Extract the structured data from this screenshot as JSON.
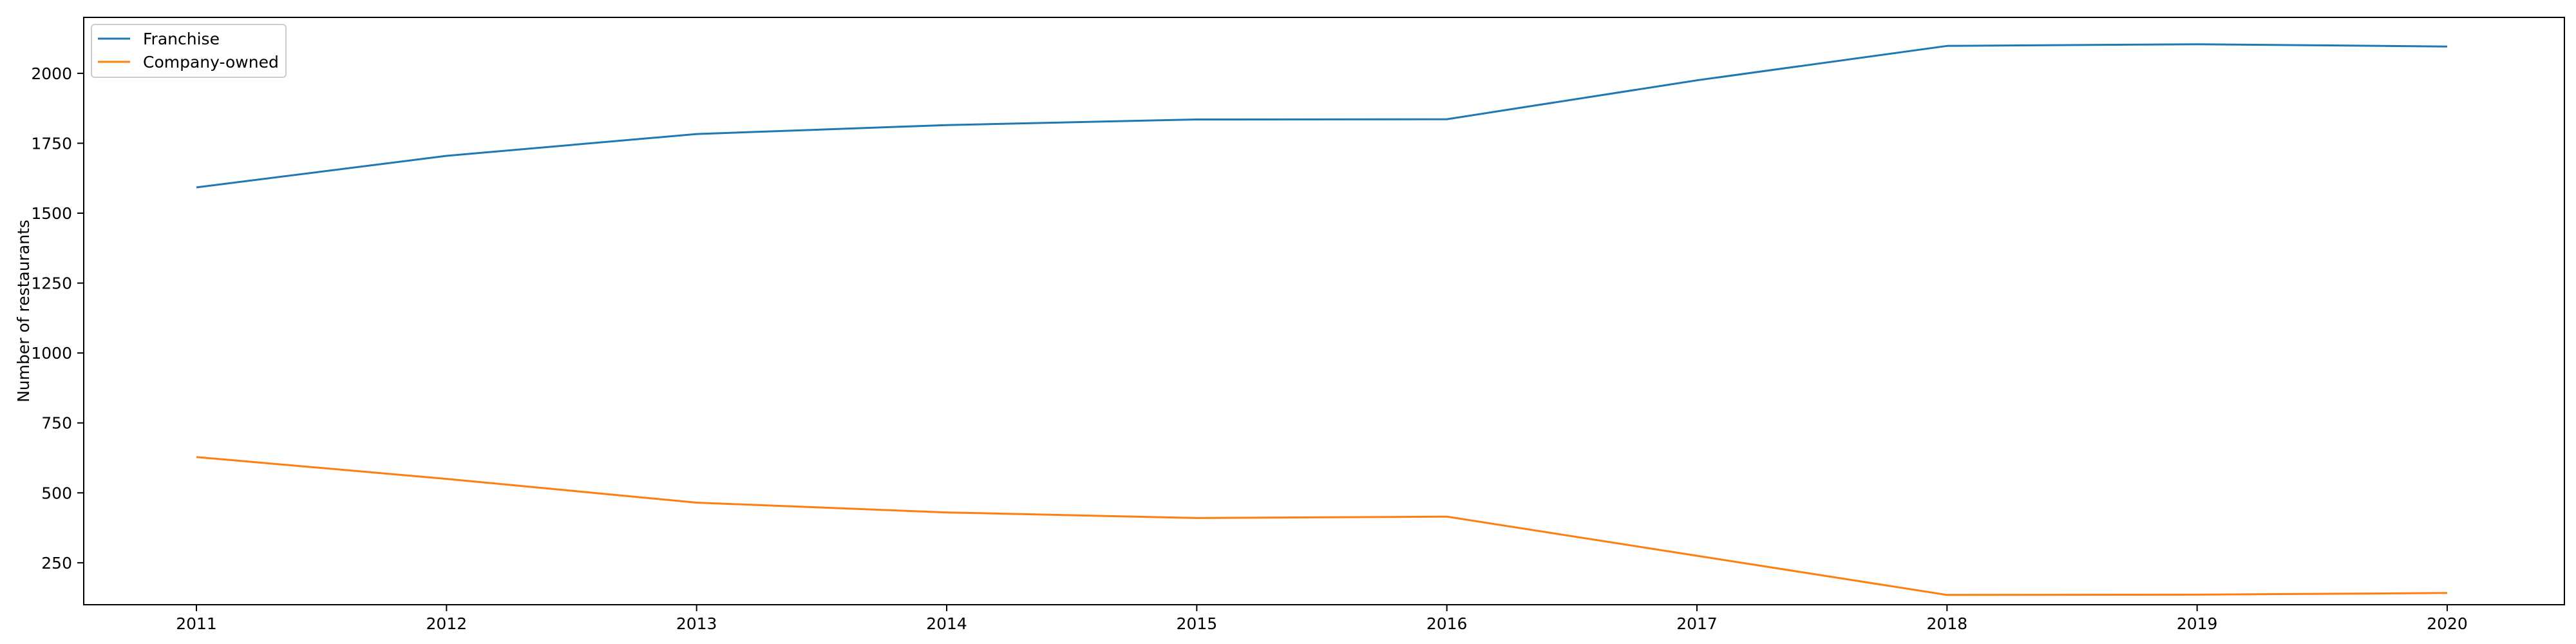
{
  "chart_data": {
    "type": "line",
    "title": "",
    "xlabel": "",
    "ylabel": "Number of restaurants",
    "x": [
      2011,
      2012,
      2013,
      2014,
      2015,
      2016,
      2017,
      2018,
      2019,
      2020
    ],
    "xticks": [
      "2011",
      "2012",
      "2013",
      "2014",
      "2015",
      "2016",
      "2017",
      "2018",
      "2019",
      "2020"
    ],
    "ylim": [
      100,
      2200
    ],
    "yticks": [
      250,
      500,
      750,
      1000,
      1250,
      1500,
      1750,
      2000
    ],
    "grid": false,
    "legend_position": "top-left",
    "series": [
      {
        "name": "Franchise",
        "color": "#1f77b4",
        "values": [
          1592,
          1705,
          1783,
          1815,
          1835,
          1836,
          1975,
          2098,
          2104,
          2096
        ]
      },
      {
        "name": "Company-owned",
        "color": "#ff7f0e",
        "values": [
          628,
          550,
          465,
          430,
          410,
          415,
          275,
          135,
          136,
          142
        ]
      }
    ]
  }
}
